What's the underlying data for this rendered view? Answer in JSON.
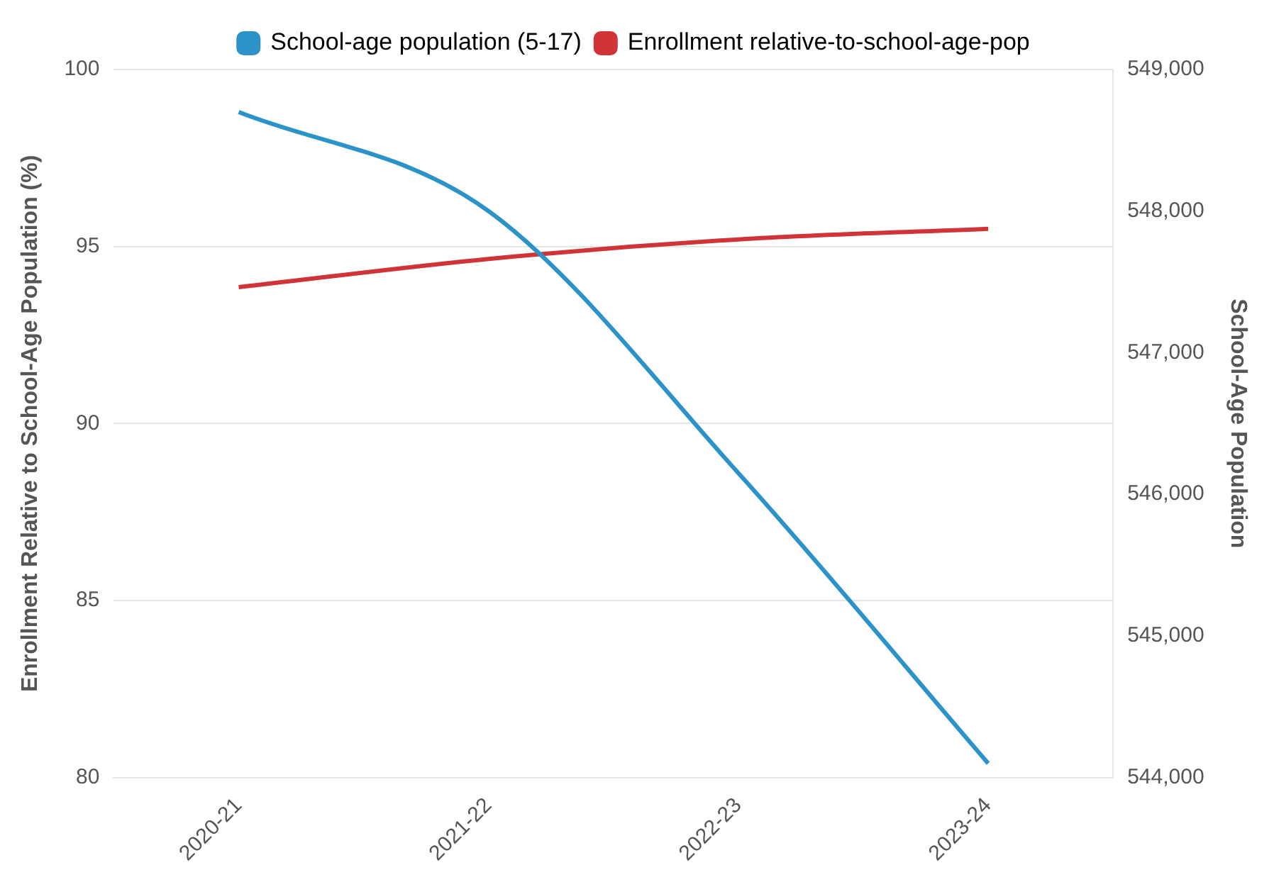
{
  "chart_data": {
    "type": "line",
    "categories": [
      "2020-21",
      "2021-22",
      "2022-23",
      "2023-24"
    ],
    "series": [
      {
        "name": "School-age population (5-17)",
        "color": "#2b93c8",
        "axis": "y2",
        "values": [
          548700,
          548000,
          546150,
          544100
        ]
      },
      {
        "name": "Enrollment relative-to-school-age-pop",
        "color": "#d13438",
        "values": [
          93.85,
          94.65,
          95.2,
          95.5
        ]
      }
    ],
    "ylabel": "Enrollment Relative to School-Age Population (%)",
    "y2label": "School-Age Population",
    "ylim": [
      80,
      100
    ],
    "yticks": [
      80,
      85,
      90,
      95,
      100
    ],
    "y2lim": [
      544000,
      549000
    ],
    "y2ticks": [
      {
        "value": 544000,
        "label": "544,000"
      },
      {
        "value": 545000,
        "label": "545,000"
      },
      {
        "value": 546000,
        "label": "546,000"
      },
      {
        "value": 547000,
        "label": "547,000"
      },
      {
        "value": 548000,
        "label": "548,000"
      },
      {
        "value": 549000,
        "label": "549,000"
      }
    ],
    "grid": "y",
    "legend": "top",
    "marker": "none",
    "line_style": "solid"
  }
}
